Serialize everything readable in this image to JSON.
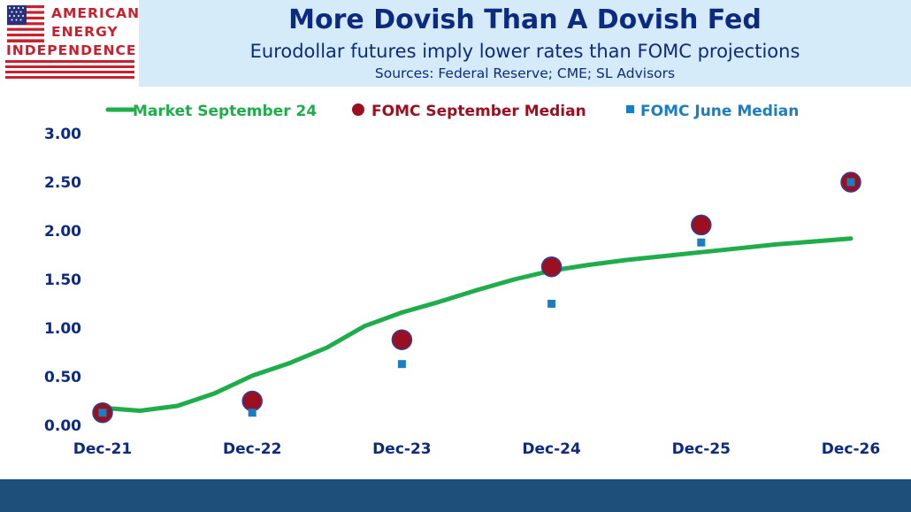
{
  "logo": {
    "line1": "AMERICAN",
    "line2": "ENERGY",
    "line3": "INDEPENDENCE"
  },
  "header": {
    "title": "More Dovish Than A Dovish Fed",
    "subtitle": "Eurodollar futures imply lower rates than FOMC projections",
    "sources": "Sources: Federal Reserve; CME; SL Advisors"
  },
  "colors": {
    "market": "#1fad4b",
    "fomc_sept": "#9b1020",
    "fomc_june": "#1a7fc1",
    "axis_text": "#0c2a80",
    "header_bg": "#d6ebfa",
    "footer_bg": "#1e4f7b"
  },
  "chart_data": {
    "type": "line",
    "x_categories": [
      "Dec-21",
      "Dec-22",
      "Dec-23",
      "Dec-24",
      "Dec-25",
      "Dec-26"
    ],
    "ylim": [
      0,
      3
    ],
    "yticks": [
      "0.00",
      "0.50",
      "1.00",
      "1.50",
      "2.00",
      "2.50",
      "3.00"
    ],
    "grid": false,
    "legend_position": "top",
    "series": [
      {
        "name": "Market September 24",
        "kind": "line",
        "x": [
          0,
          0.25,
          0.5,
          0.75,
          1,
          1.25,
          1.5,
          1.75,
          2,
          2.25,
          2.5,
          2.75,
          3,
          3.25,
          3.5,
          3.75,
          4,
          4.25,
          4.5,
          4.75,
          5
        ],
        "values": [
          0.18,
          0.15,
          0.2,
          0.33,
          0.51,
          0.64,
          0.8,
          1.02,
          1.16,
          1.27,
          1.39,
          1.5,
          1.59,
          1.65,
          1.7,
          1.74,
          1.78,
          1.82,
          1.86,
          1.89,
          1.92
        ]
      },
      {
        "name": "FOMC September Median",
        "kind": "marker-circle",
        "x": [
          0,
          1,
          2,
          3,
          4,
          5
        ],
        "values": [
          0.13,
          0.25,
          0.88,
          1.63,
          2.06,
          2.5
        ]
      },
      {
        "name": "FOMC June Median",
        "kind": "marker-square",
        "x": [
          0,
          1,
          2,
          3,
          4,
          5
        ],
        "values": [
          0.13,
          0.13,
          0.63,
          1.25,
          1.88,
          2.5
        ]
      }
    ]
  }
}
